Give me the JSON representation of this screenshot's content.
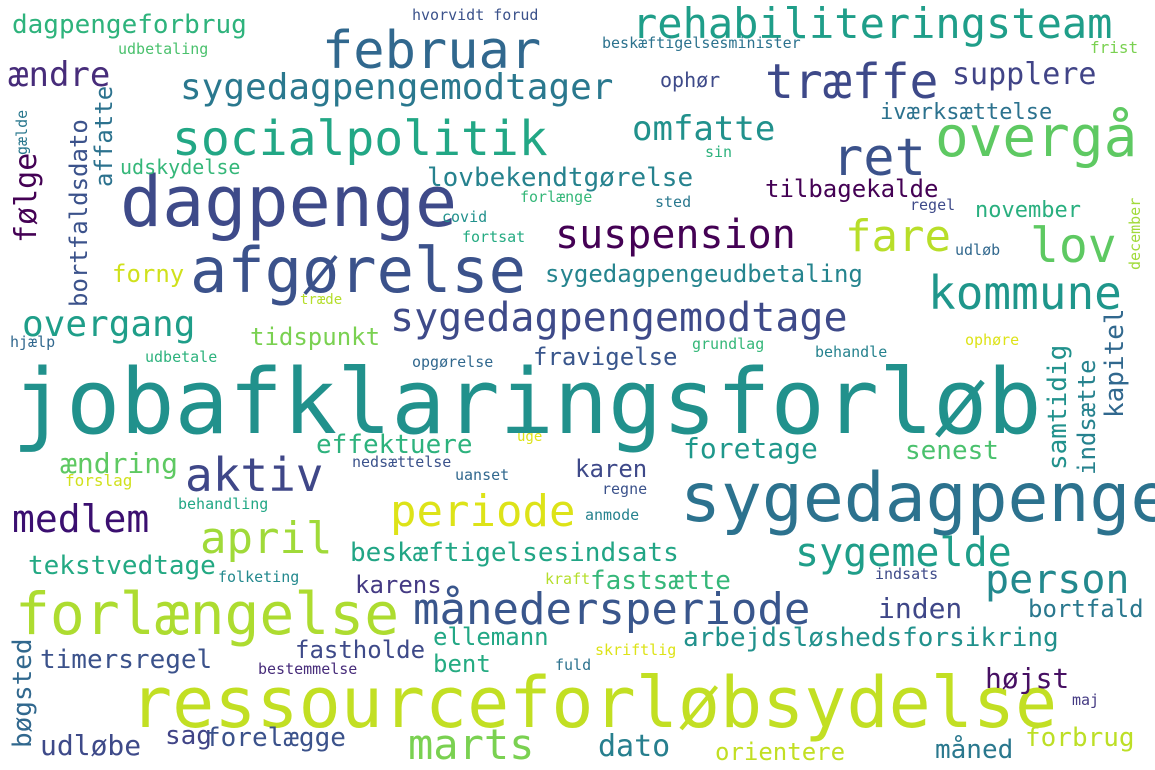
{
  "words": [
    {
      "id": "jobafklaringsforlob",
      "text": "jobafklaringsforløb",
      "color": "#21918c"
    },
    {
      "id": "ressourceforlobsydelse",
      "text": "ressourceforløbsydelse",
      "color": "#c2df23"
    },
    {
      "id": "dagpenge",
      "text": "dagpenge",
      "color": "#3e4a89"
    },
    {
      "id": "sygedagpenge",
      "text": "sygedagpenge",
      "color": "#2c728e"
    },
    {
      "id": "afgorelse",
      "text": "afgørelse",
      "color": "#3b528b"
    },
    {
      "id": "forlaengelse",
      "text": "forlængelse",
      "color": "#addc30"
    },
    {
      "id": "februar",
      "text": "februar",
      "color": "#31688e"
    },
    {
      "id": "rehabiliteringsteam",
      "text": "rehabiliteringsteam",
      "color": "#1f9e89"
    },
    {
      "id": "socialpolitik",
      "text": "socialpolitik",
      "color": "#22a785"
    },
    {
      "id": "overga",
      "text": "overgå",
      "color": "#5ec962"
    },
    {
      "id": "traeffe",
      "text": "træffe",
      "color": "#3e4989"
    },
    {
      "id": "ret",
      "text": "ret",
      "color": "#3b528b"
    },
    {
      "id": "sygedagpengemodtager",
      "text": "sygedagpengemodtager",
      "color": "#2a788e"
    },
    {
      "id": "sygedagpengemodtage",
      "text": "sygedagpengemodtage",
      "color": "#3e4a89"
    },
    {
      "id": "suspension",
      "text": "suspension",
      "color": "#440154"
    },
    {
      "id": "kommune",
      "text": "kommune",
      "color": "#1f968b"
    },
    {
      "id": "lov",
      "text": "lov",
      "color": "#5ec962"
    },
    {
      "id": "fare",
      "text": "fare",
      "color": "#b8de29"
    },
    {
      "id": "omfatte",
      "text": "omfatte",
      "color": "#21918c"
    },
    {
      "id": "maanedersperiode",
      "text": "månedersperiode",
      "color": "#39568c"
    },
    {
      "id": "aktiv",
      "text": "aktiv",
      "color": "#3f4788"
    },
    {
      "id": "april",
      "text": "april",
      "color": "#a0da39"
    },
    {
      "id": "periode",
      "text": "periode",
      "color": "#dde318"
    },
    {
      "id": "marts",
      "text": "marts",
      "color": "#7ad151"
    },
    {
      "id": "person",
      "text": "person",
      "color": "#23898e"
    },
    {
      "id": "sygemelde",
      "text": "sygemelde",
      "color": "#1f9e89"
    },
    {
      "id": "beskaeftigelsesindsats",
      "text": "beskæftigelsesindsats",
      "color": "#21a585"
    },
    {
      "id": "overgang",
      "text": "overgang",
      "color": "#1f9e89"
    },
    {
      "id": "medlem",
      "text": "medlem",
      "color": "#3b0f70"
    },
    {
      "id": "lovbekendtgorelse",
      "text": "lovbekendtgørelse",
      "color": "#26828e"
    },
    {
      "id": "sygedagpengeudbetaling",
      "text": "sygedagpengeudbetaling",
      "color": "#25848e"
    },
    {
      "id": "arbejdsloeshedsforsikring",
      "text": "arbejdsløshedsforsikring",
      "color": "#21918c"
    },
    {
      "id": "aendre",
      "text": "ændre",
      "color": "#472c7a"
    },
    {
      "id": "supplere",
      "text": "supplere",
      "color": "#414487"
    },
    {
      "id": "dagpengeforbrug",
      "text": "dagpengeforbrug",
      "color": "#2eb37c"
    },
    {
      "id": "udskydelse",
      "text": "udskydelse",
      "color": "#35b779"
    },
    {
      "id": "tilbagekalde",
      "text": "tilbagekalde",
      "color": "#440154"
    },
    {
      "id": "november",
      "text": "november",
      "color": "#29af7f"
    },
    {
      "id": "iverksaettelse",
      "text": "iværksættelse",
      "color": "#2c728e"
    },
    {
      "id": "tidspunkt",
      "text": "tidspunkt",
      "color": "#7ad151"
    },
    {
      "id": "forny",
      "text": "forny",
      "color": "#d0e11c"
    },
    {
      "id": "effektuere",
      "text": "effektuere",
      "color": "#2db27d"
    },
    {
      "id": "fravigelse",
      "text": "fravigelse",
      "color": "#39568c"
    },
    {
      "id": "aendring",
      "text": "ændring",
      "color": "#5ec962"
    },
    {
      "id": "foretage",
      "text": "foretage",
      "color": "#1f988b"
    },
    {
      "id": "senest",
      "text": "senest",
      "color": "#4ac16d"
    },
    {
      "id": "karen",
      "text": "karen",
      "color": "#3e4989"
    },
    {
      "id": "tekstvedtage",
      "text": "tekstvedtage",
      "color": "#23a983"
    },
    {
      "id": "karens",
      "text": "karens",
      "color": "#443a83"
    },
    {
      "id": "fastsaette",
      "text": "fastsætte",
      "color": "#35b779"
    },
    {
      "id": "inden",
      "text": "inden",
      "color": "#3f4788"
    },
    {
      "id": "bortfald",
      "text": "bortfald",
      "color": "#2a788e"
    },
    {
      "id": "ellemann",
      "text": "ellemann",
      "color": "#22a785"
    },
    {
      "id": "fastholde",
      "text": "fastholde",
      "color": "#3e4a89"
    },
    {
      "id": "timersregel",
      "text": "timersregel",
      "color": "#3b528b"
    },
    {
      "id": "bent",
      "text": "bent",
      "color": "#25ab82"
    },
    {
      "id": "hoejst",
      "text": "højst",
      "color": "#471063"
    },
    {
      "id": "udloebe",
      "text": "udløbe",
      "color": "#3e4a89"
    },
    {
      "id": "sag",
      "text": "sag",
      "color": "#414487"
    },
    {
      "id": "forelaegge",
      "text": "forelægge",
      "color": "#3b528b"
    },
    {
      "id": "dato",
      "text": "dato",
      "color": "#277f8e"
    },
    {
      "id": "maaned",
      "text": "måned",
      "color": "#2a788e"
    },
    {
      "id": "forbrug",
      "text": "forbrug",
      "color": "#bddf26"
    },
    {
      "id": "orientere",
      "text": "orientere",
      "color": "#c2df23"
    },
    {
      "id": "ophor",
      "text": "ophør",
      "color": "#3e4a89"
    },
    {
      "id": "hvorvidt_forud",
      "text": "hvorvidt forud",
      "color": "#3b528b"
    },
    {
      "id": "udbetaling",
      "text": "udbetaling",
      "color": "#4ac16d"
    },
    {
      "id": "beskaeftigelsesminister",
      "text": "beskæftigelsesminister",
      "color": "#2c728e"
    },
    {
      "id": "frist",
      "text": "frist",
      "color": "#7ad151"
    },
    {
      "id": "sin",
      "text": "sin",
      "color": "#2db27d"
    },
    {
      "id": "sted",
      "text": "sted",
      "color": "#2a788e"
    },
    {
      "id": "regel",
      "text": "regel",
      "color": "#3e4a89"
    },
    {
      "id": "forlaenge",
      "text": "forlænge",
      "color": "#35b779"
    },
    {
      "id": "covid",
      "text": "covid",
      "color": "#21918c"
    },
    {
      "id": "fortsat",
      "text": "fortsat",
      "color": "#25ab82"
    },
    {
      "id": "udloeb",
      "text": "udløb",
      "color": "#31688e"
    },
    {
      "id": "traede",
      "text": "træde",
      "color": "#b5de2b"
    },
    {
      "id": "hjaelp",
      "text": "hjælp",
      "color": "#31688e"
    },
    {
      "id": "udbetale",
      "text": "udbetale",
      "color": "#2db27d"
    },
    {
      "id": "opgoerelse",
      "text": "opgørelse",
      "color": "#31688e"
    },
    {
      "id": "grundlag",
      "text": "grundlag",
      "color": "#35b779"
    },
    {
      "id": "behandle",
      "text": "behandle",
      "color": "#26828e"
    },
    {
      "id": "ophoere",
      "text": "ophøre",
      "color": "#dde318"
    },
    {
      "id": "uge",
      "text": "uge",
      "color": "#dde318"
    },
    {
      "id": "nedsaettelse",
      "text": "nedsættelse",
      "color": "#3b528b"
    },
    {
      "id": "uanset",
      "text": "uanset",
      "color": "#31688e"
    },
    {
      "id": "forslag",
      "text": "forslag",
      "color": "#d0e11c"
    },
    {
      "id": "behandling",
      "text": "behandling",
      "color": "#22a785"
    },
    {
      "id": "regne",
      "text": "regne",
      "color": "#3b528b"
    },
    {
      "id": "anmode",
      "text": "anmode",
      "color": "#26828e"
    },
    {
      "id": "folketing",
      "text": "folketing",
      "color": "#23898e"
    },
    {
      "id": "kraft",
      "text": "kraft",
      "color": "#b5de2b"
    },
    {
      "id": "indsats",
      "text": "indsats",
      "color": "#3e4a89"
    },
    {
      "id": "bestemmelse",
      "text": "bestemmelse",
      "color": "#472c7a"
    },
    {
      "id": "fuld",
      "text": "fuld",
      "color": "#2c728e"
    },
    {
      "id": "skriftlig",
      "text": "skriftlig",
      "color": "#dde318"
    },
    {
      "id": "maj",
      "text": "maj",
      "color": "#443a83"
    },
    {
      "id": "bortfaldsdato",
      "text": "bortfaldsdato",
      "color": "#3b528b"
    },
    {
      "id": "affatte",
      "text": "affatte",
      "color": "#2c728e"
    },
    {
      "id": "folge",
      "text": "følge",
      "color": "#440154"
    },
    {
      "id": "gaelde",
      "text": "gælde",
      "color": "#2a788e"
    },
    {
      "id": "samtidig",
      "text": "samtidig",
      "color": "#21918c"
    },
    {
      "id": "indsaette",
      "text": "indsætte",
      "color": "#26828e"
    },
    {
      "id": "kapitel",
      "text": "kapitel",
      "color": "#31688e"
    },
    {
      "id": "december",
      "text": "december",
      "color": "#a0da39"
    },
    {
      "id": "boegsted",
      "text": "bøgsted",
      "color": "#31688e"
    }
  ]
}
